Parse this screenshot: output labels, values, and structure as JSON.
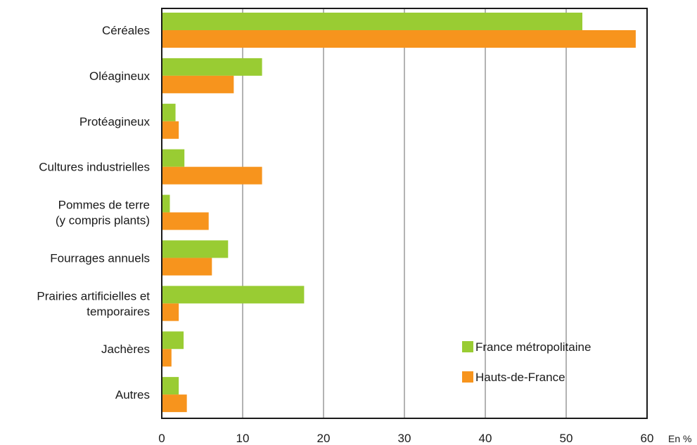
{
  "chart_data": {
    "type": "bar",
    "orientation": "horizontal",
    "categories": [
      [
        "Céréales"
      ],
      [
        "Oléagineux"
      ],
      [
        "Protéagineux"
      ],
      [
        "Cultures industrielles"
      ],
      [
        "Pommes de terre",
        "(y compris plants)"
      ],
      [
        "Fourrages annuels"
      ],
      [
        "Prairies artificielles et",
        "temporaires"
      ],
      [
        "Jachères"
      ],
      [
        "Autres"
      ]
    ],
    "series": [
      {
        "name": "France métropolitaine",
        "color": "#99cc33",
        "values": [
          52.0,
          12.4,
          1.7,
          2.8,
          1.0,
          8.2,
          17.6,
          2.7,
          2.1
        ]
      },
      {
        "name": "Hauts-de-France",
        "color": "#f7941d",
        "values": [
          58.6,
          8.9,
          2.1,
          12.4,
          5.8,
          6.2,
          2.1,
          1.2,
          3.1
        ]
      }
    ],
    "xlim": [
      0,
      60
    ],
    "xticks": [
      "0",
      "10",
      "20",
      "30",
      "40",
      "50",
      "60"
    ],
    "xunit": "En %",
    "grid": true,
    "legend_position": "bottom-right"
  }
}
